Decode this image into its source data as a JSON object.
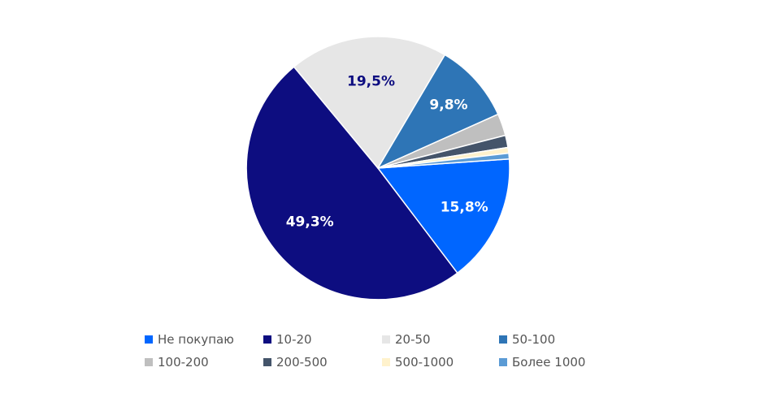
{
  "chart_data": {
    "type": "pie",
    "title": "",
    "slices": [
      {
        "label": "Не покупаю",
        "value": 15.8,
        "value_label": "15,8%",
        "color": "#0066FF",
        "label_color": "#ffffff"
      },
      {
        "label": "10-20",
        "value": 49.3,
        "value_label": "49,3%",
        "color": "#0D0D80",
        "label_color": "#ffffff"
      },
      {
        "label": "20-50",
        "value": 19.5,
        "value_label": "19,5%",
        "color": "#E6E6E6",
        "label_color": "#0D0D80"
      },
      {
        "label": "50-100",
        "value": 9.8,
        "value_label": "9,8%",
        "color": "#2E75B6",
        "label_color": "#ffffff"
      },
      {
        "label": "100-200",
        "value": 2.7,
        "value_label": "",
        "color": "#BFBFBF",
        "label_color": "#ffffff"
      },
      {
        "label": "200-500",
        "value": 1.5,
        "value_label": "",
        "color": "#44546A",
        "label_color": "#ffffff"
      },
      {
        "label": "500-1000",
        "value": 0.7,
        "value_label": "",
        "color": "#FFF2CC",
        "label_color": "#ffffff"
      },
      {
        "label": "Более 1000",
        "value": 0.7,
        "value_label": "",
        "color": "#5B9BD5",
        "label_color": "#ffffff"
      }
    ],
    "legend_position": "bottom"
  }
}
